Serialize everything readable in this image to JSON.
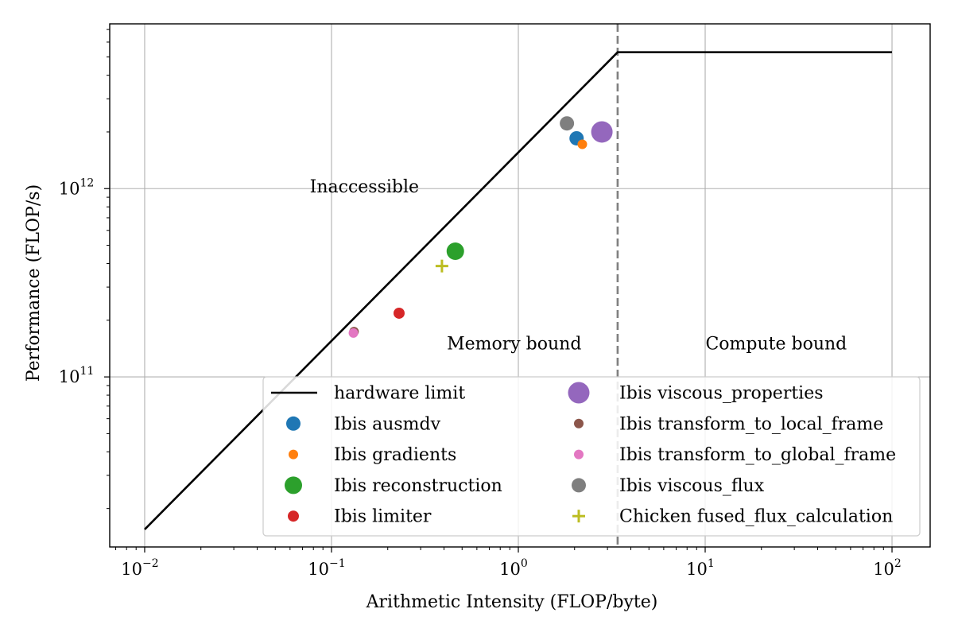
{
  "chart_data": {
    "type": "scatter",
    "title": "",
    "xlabel": "Arithmetic Intensity (FLOP/byte)",
    "ylabel": "Performance (FLOP/s)",
    "xscale": "log",
    "yscale": "log",
    "xlim": [
      0.0065,
      160
    ],
    "ylim": [
      12500000000.0,
      7500000000000.0
    ],
    "grid": true,
    "legend_position": "lower-right",
    "x_ticks": [
      {
        "value": 0.01,
        "base": "10",
        "exp": "−2"
      },
      {
        "value": 0.1,
        "base": "10",
        "exp": "−1"
      },
      {
        "value": 1,
        "base": "10",
        "exp": "0"
      },
      {
        "value": 10,
        "base": "10",
        "exp": "1"
      },
      {
        "value": 100,
        "base": "10",
        "exp": "2"
      }
    ],
    "y_ticks": [
      {
        "value": 100000000000.0,
        "base": "10",
        "exp": "11"
      },
      {
        "value": 1000000000000.0,
        "base": "10",
        "exp": "12"
      }
    ],
    "roofline": {
      "name": "hardware limit",
      "color": "#000000",
      "points": [
        [
          0.01,
          15500000000.0
        ],
        [
          3.4,
          5300000000000.0
        ],
        [
          100,
          5300000000000.0
        ]
      ]
    },
    "ridge": {
      "x": 3.4,
      "color": "#808080"
    },
    "annotations": [
      {
        "text": "Inaccessible",
        "x": 0.15,
        "y": 1020000000000.0
      },
      {
        "text": "Memory bound",
        "x": 0.95,
        "y": 150000000000.0
      },
      {
        "text": "Compute bound",
        "x": 24,
        "y": 150000000000.0
      }
    ],
    "series": [
      {
        "name": "Ibis ausmdv",
        "color": "#1f77b4",
        "marker": "circle",
        "size": 9,
        "points": [
          [
            2.05,
            1850000000000.0
          ]
        ]
      },
      {
        "name": "Ibis gradients",
        "color": "#ff7f0e",
        "marker": "circle",
        "size": 6,
        "points": [
          [
            2.2,
            1720000000000.0
          ]
        ]
      },
      {
        "name": "Ibis reconstruction",
        "color": "#2ca02c",
        "marker": "circle",
        "size": 11,
        "points": [
          [
            0.46,
            465000000000.0
          ]
        ]
      },
      {
        "name": "Ibis limiter",
        "color": "#d62728",
        "marker": "circle",
        "size": 7,
        "points": [
          [
            0.23,
            218000000000.0
          ]
        ]
      },
      {
        "name": "Ibis viscous_properties",
        "color": "#9467bd",
        "marker": "circle",
        "size": 13.5,
        "points": [
          [
            2.8,
            2000000000000.0
          ]
        ]
      },
      {
        "name": "Ibis transform_to_local_frame",
        "color": "#8c564b",
        "marker": "circle",
        "size": 6,
        "points": [
          [
            0.132,
            174000000000.0
          ]
        ]
      },
      {
        "name": "Ibis transform_to_global_frame",
        "color": "#e377c2",
        "marker": "circle",
        "size": 6,
        "points": [
          [
            0.131,
            171000000000.0
          ]
        ]
      },
      {
        "name": "Ibis viscous_flux",
        "color": "#7f7f7f",
        "marker": "circle",
        "size": 9,
        "points": [
          [
            1.82,
            2220000000000.0
          ]
        ]
      },
      {
        "name": "Chicken fused_flux_calculation",
        "color": "#bcbd22",
        "marker": "plus",
        "size": 8,
        "points": [
          [
            0.39,
            388000000000.0
          ]
        ]
      }
    ]
  }
}
